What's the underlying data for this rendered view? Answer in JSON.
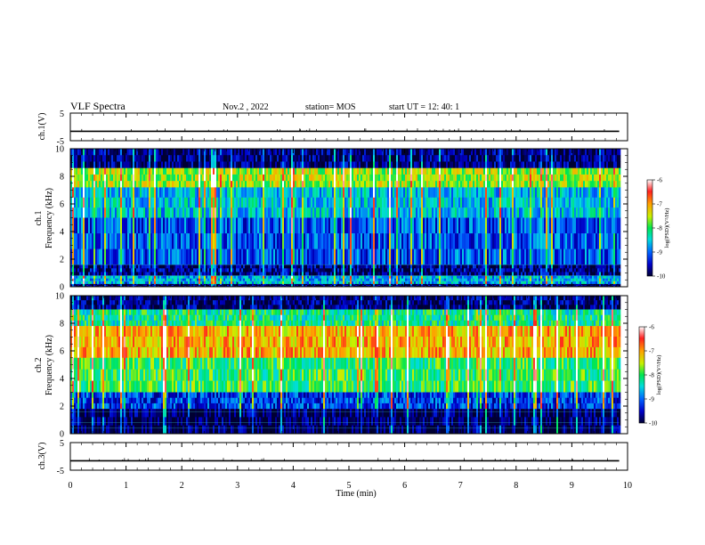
{
  "header": {
    "title": "VLF Spectra",
    "date": "Nov.2 , 2022",
    "station": "station= MOS",
    "start": "start UT = 12: 40: 1"
  },
  "colors": {
    "background": "#ffffff",
    "axes": "#000000",
    "colormap": [
      "#000033",
      "#0000c8",
      "#0064ff",
      "#00dcdc",
      "#00e650",
      "#c8f000",
      "#ffa000",
      "#ff2020",
      "#ffffff"
    ]
  },
  "chart_data": [
    {
      "id": "ch1-voltage",
      "type": "line",
      "ylabel": "ch.1(V)",
      "ylim": [
        -5,
        5
      ],
      "yticks": [
        5,
        -5
      ],
      "x_range": [
        0,
        9.85
      ],
      "y_level": -1.6,
      "note_description": "flat trace with sparse spikes"
    },
    {
      "id": "ch1-spectrogram",
      "type": "heatmap",
      "ylabel": "ch.1\nFrequency (kHz)",
      "ylabel_lines": [
        "ch.1",
        "Frequency (kHz)"
      ],
      "ylim": [
        0,
        10
      ],
      "yticks": [
        0,
        2,
        4,
        6,
        8,
        10
      ],
      "x_range": [
        0,
        9.85
      ],
      "colorbar": {
        "label": "log(PSD)(V²/Hz)",
        "range": [
          -10,
          -6
        ],
        "ticks": [
          "-6",
          "-7",
          "-8",
          "-9",
          "-10"
        ]
      },
      "bands": [
        {
          "freq": [
            8.6,
            10
          ],
          "level": -9.8
        },
        {
          "freq": [
            7.2,
            8.6
          ],
          "level": -7.6
        },
        {
          "freq": [
            5.0,
            7.2
          ],
          "level": -8.6
        },
        {
          "freq": [
            1.6,
            5.0
          ],
          "level": -9.1
        },
        {
          "freq": [
            0.8,
            1.6
          ],
          "level": -9.7
        },
        {
          "freq": [
            0.2,
            0.8
          ],
          "level": -8.7
        },
        {
          "freq": [
            0,
            0.2
          ],
          "level": -9.9
        }
      ]
    },
    {
      "id": "ch2-spectrogram",
      "type": "heatmap",
      "ylabel_lines": [
        "ch.2",
        "Frequency (kHz)"
      ],
      "ylim": [
        0,
        10
      ],
      "yticks": [
        0,
        2,
        4,
        6,
        8,
        10
      ],
      "x_range": [
        0,
        9.85
      ],
      "colorbar": {
        "label": "log(PSD)(V²/Hz)",
        "range": [
          -10,
          -6
        ],
        "ticks": [
          "-6",
          "-7",
          "-8",
          "-9",
          "-10"
        ]
      },
      "bands": [
        {
          "freq": [
            9.0,
            10
          ],
          "level": -9.8
        },
        {
          "freq": [
            7.8,
            9.0
          ],
          "level": -8.2
        },
        {
          "freq": [
            5.5,
            7.8
          ],
          "level": -7.1
        },
        {
          "freq": [
            3.0,
            5.5
          ],
          "level": -8.0
        },
        {
          "freq": [
            1.8,
            3.0
          ],
          "level": -9.2
        },
        {
          "freq": [
            0,
            1.8
          ],
          "level": -9.9
        }
      ]
    },
    {
      "id": "ch3-voltage",
      "type": "line",
      "ylabel": "ch.3(V)",
      "ylim": [
        -5,
        5
      ],
      "yticks": [
        5,
        -5
      ],
      "x_range": [
        0,
        9.85
      ],
      "y_level": -1.6
    }
  ],
  "x_axis": {
    "label": "Time (min)",
    "xlim": [
      0,
      10
    ],
    "ticks": [
      "0",
      "1",
      "2",
      "3",
      "4",
      "5",
      "6",
      "7",
      "8",
      "9",
      "10"
    ]
  }
}
